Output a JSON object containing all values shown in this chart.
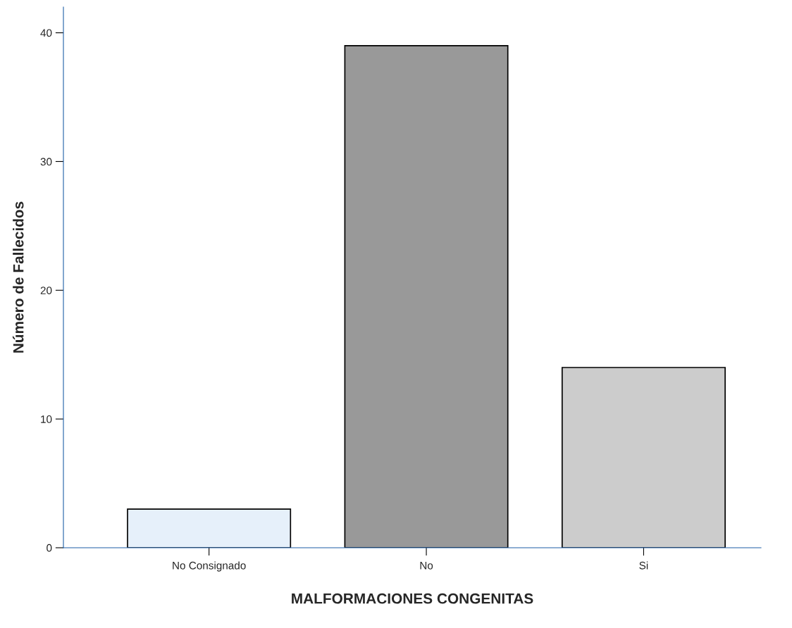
{
  "chart_data": {
    "type": "bar",
    "xlabel": "MALFORMACIONES CONGENITAS",
    "ylabel": "Número de Fallecidos",
    "categories": [
      "No Consignado",
      "No",
      "Si"
    ],
    "values": [
      3,
      39,
      14
    ],
    "colors": [
      "#e6f0fa",
      "#999999",
      "#cccccc"
    ],
    "ylim": [
      0,
      42
    ],
    "yticks": [
      0,
      10,
      20,
      30,
      40
    ],
    "grid": false,
    "legend": false
  }
}
